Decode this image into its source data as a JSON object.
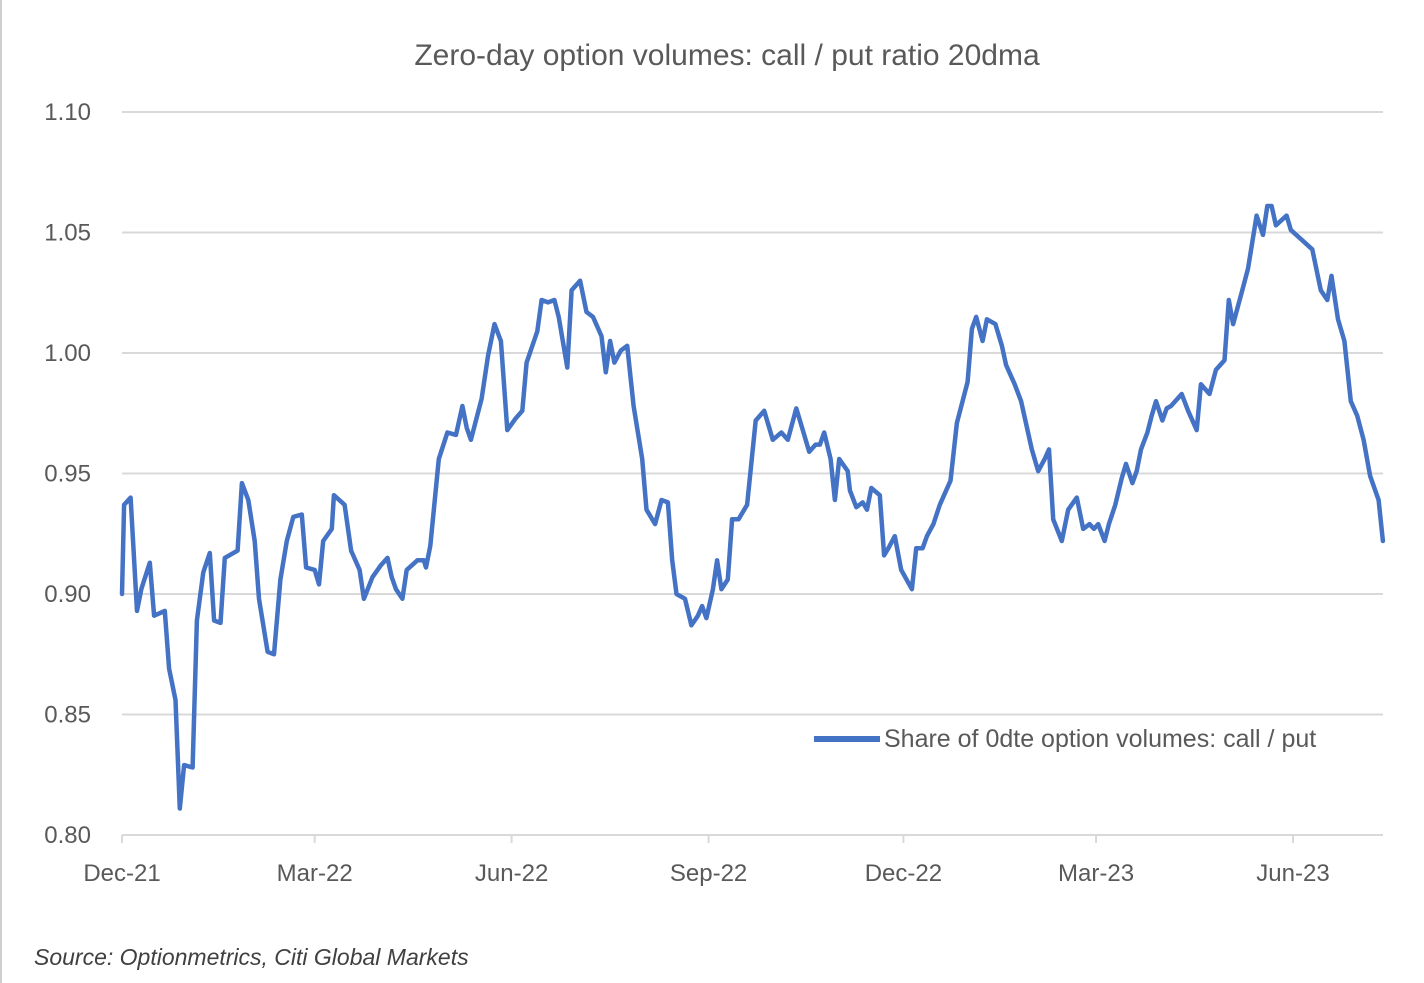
{
  "chart_data": {
    "type": "line",
    "title": "Zero-day option volumes: call / put ratio 20dma",
    "xlabel": "",
    "ylabel": "",
    "ylim": [
      0.8,
      1.1
    ],
    "xlim": [
      "2021-12-01",
      "2023-07-13"
    ],
    "yticks": [
      "0.80",
      "0.85",
      "0.90",
      "0.95",
      "1.00",
      "1.05",
      "1.10"
    ],
    "xticks": [
      {
        "label": "Dec-21",
        "date": "2021-12-01"
      },
      {
        "label": "Mar-22",
        "date": "2022-03-01"
      },
      {
        "label": "Jun-22",
        "date": "2022-06-01"
      },
      {
        "label": "Sep-22",
        "date": "2022-09-01"
      },
      {
        "label": "Dec-22",
        "date": "2022-12-01"
      },
      {
        "label": "Mar-23",
        "date": "2023-03-01"
      },
      {
        "label": "Jun-23",
        "date": "2023-06-01"
      }
    ],
    "grid": true,
    "legend_position": "bottom-right",
    "series": [
      {
        "name": "Share of 0dte option volumes: call / put",
        "color": "#4472C4",
        "x": [
          "2021-12-01",
          "2021-12-02",
          "2021-12-05",
          "2021-12-08",
          "2021-12-10",
          "2021-12-14",
          "2021-12-16",
          "2021-12-21",
          "2021-12-23",
          "2021-12-26",
          "2021-12-28",
          "2021-12-30",
          "2022-01-03",
          "2022-01-05",
          "2022-01-08",
          "2022-01-11",
          "2022-01-13",
          "2022-01-16",
          "2022-01-18",
          "2022-01-24",
          "2022-01-26",
          "2022-01-29",
          "2022-02-01",
          "2022-02-03",
          "2022-02-07",
          "2022-02-10",
          "2022-02-13",
          "2022-02-16",
          "2022-02-19",
          "2022-02-23",
          "2022-02-25",
          "2022-03-01",
          "2022-03-03",
          "2022-03-05",
          "2022-03-09",
          "2022-03-10",
          "2022-03-15",
          "2022-03-18",
          "2022-03-22",
          "2022-03-24",
          "2022-03-28",
          "2022-04-01",
          "2022-04-04",
          "2022-04-06",
          "2022-04-08",
          "2022-04-11",
          "2022-04-13",
          "2022-04-18",
          "2022-04-21",
          "2022-04-22",
          "2022-04-24",
          "2022-04-28",
          "2022-05-02",
          "2022-05-06",
          "2022-05-09",
          "2022-05-11",
          "2022-05-13",
          "2022-05-18",
          "2022-05-21",
          "2022-05-24",
          "2022-05-27",
          "2022-05-30",
          "2022-06-03",
          "2022-06-06",
          "2022-06-08",
          "2022-06-13",
          "2022-06-15",
          "2022-06-18",
          "2022-06-21",
          "2022-06-23",
          "2022-06-27",
          "2022-06-29",
          "2022-07-03",
          "2022-07-06",
          "2022-07-09",
          "2022-07-13",
          "2022-07-15",
          "2022-07-17",
          "2022-07-19",
          "2022-07-22",
          "2022-07-25",
          "2022-07-28",
          "2022-08-01",
          "2022-08-03",
          "2022-08-07",
          "2022-08-10",
          "2022-08-13",
          "2022-08-15",
          "2022-08-17",
          "2022-08-21",
          "2022-08-24",
          "2022-08-27",
          "2022-08-29",
          "2022-08-31",
          "2022-09-03",
          "2022-09-05",
          "2022-09-07",
          "2022-09-10",
          "2022-09-12",
          "2022-09-15",
          "2022-09-19",
          "2022-09-23",
          "2022-09-27",
          "2022-10-01",
          "2022-10-05",
          "2022-10-08",
          "2022-10-12",
          "2022-10-15",
          "2022-10-18",
          "2022-10-21",
          "2022-10-23",
          "2022-10-25",
          "2022-10-28",
          "2022-10-30",
          "2022-11-01",
          "2022-11-05",
          "2022-11-06",
          "2022-11-09",
          "2022-11-12",
          "2022-11-14",
          "2022-11-16",
          "2022-11-20",
          "2022-11-22",
          "2022-11-24",
          "2022-11-27",
          "2022-11-30",
          "2022-12-05",
          "2022-12-07",
          "2022-12-10",
          "2022-12-12",
          "2022-12-15",
          "2022-12-18",
          "2022-12-23",
          "2022-12-26",
          "2022-12-31",
          "2023-01-02",
          "2023-01-04",
          "2023-01-07",
          "2023-01-09",
          "2023-01-13",
          "2023-01-16",
          "2023-01-18",
          "2023-01-22",
          "2023-01-25",
          "2023-01-30",
          "2023-02-02",
          "2023-02-05",
          "2023-02-07",
          "2023-02-09",
          "2023-02-13",
          "2023-02-16",
          "2023-02-20",
          "2023-02-23",
          "2023-02-26",
          "2023-02-28",
          "2023-03-02",
          "2023-03-05",
          "2023-03-07",
          "2023-03-10",
          "2023-03-13",
          "2023-03-15",
          "2023-03-18",
          "2023-03-20",
          "2023-03-22",
          "2023-03-25",
          "2023-03-27",
          "2023-03-29",
          "2023-04-01",
          "2023-04-03",
          "2023-04-05",
          "2023-04-10",
          "2023-04-13",
          "2023-04-17",
          "2023-04-19",
          "2023-04-23",
          "2023-04-26",
          "2023-04-30",
          "2023-05-02",
          "2023-05-04",
          "2023-05-08",
          "2023-05-11",
          "2023-05-15",
          "2023-05-18",
          "2023-05-20",
          "2023-05-22",
          "2023-05-24",
          "2023-05-29",
          "2023-05-31",
          "2023-06-05",
          "2023-06-10",
          "2023-06-14",
          "2023-06-17",
          "2023-06-19",
          "2023-06-22",
          "2023-06-25",
          "2023-06-28",
          "2023-07-01",
          "2023-07-04",
          "2023-07-07",
          "2023-07-11",
          "2023-07-13"
        ],
        "y": [
          0.9,
          0.937,
          0.94,
          0.893,
          0.902,
          0.913,
          0.891,
          0.893,
          0.869,
          0.856,
          0.811,
          0.829,
          0.828,
          0.889,
          0.909,
          0.917,
          0.889,
          0.888,
          0.915,
          0.918,
          0.946,
          0.939,
          0.922,
          0.898,
          0.876,
          0.875,
          0.906,
          0.922,
          0.932,
          0.933,
          0.911,
          0.91,
          0.904,
          0.922,
          0.927,
          0.941,
          0.937,
          0.918,
          0.91,
          0.898,
          0.907,
          0.912,
          0.915,
          0.907,
          0.902,
          0.898,
          0.91,
          0.914,
          0.914,
          0.911,
          0.92,
          0.956,
          0.967,
          0.966,
          0.978,
          0.969,
          0.964,
          0.981,
          0.999,
          1.012,
          1.005,
          0.968,
          0.973,
          0.976,
          0.996,
          1.009,
          1.022,
          1.021,
          1.022,
          1.015,
          0.994,
          1.026,
          1.03,
          1.017,
          1.015,
          1.007,
          0.992,
          1.005,
          0.996,
          1.001,
          1.003,
          0.978,
          0.956,
          0.935,
          0.929,
          0.939,
          0.938,
          0.914,
          0.9,
          0.898,
          0.887,
          0.891,
          0.895,
          0.89,
          0.902,
          0.914,
          0.902,
          0.906,
          0.931,
          0.931,
          0.937,
          0.972,
          0.976,
          0.964,
          0.967,
          0.964,
          0.977,
          0.968,
          0.959,
          0.962,
          0.962,
          0.967,
          0.956,
          0.939,
          0.956,
          0.951,
          0.943,
          0.936,
          0.938,
          0.935,
          0.944,
          0.941,
          0.916,
          0.919,
          0.924,
          0.91,
          0.902,
          0.919,
          0.919,
          0.924,
          0.929,
          0.937,
          0.947,
          0.971,
          0.988,
          1.01,
          1.015,
          1.005,
          1.014,
          1.012,
          1.003,
          0.995,
          0.987,
          0.98,
          0.96,
          0.951,
          0.956,
          0.96,
          0.931,
          0.922,
          0.935,
          0.94,
          0.927,
          0.929,
          0.927,
          0.929,
          0.922,
          0.929,
          0.937,
          0.948,
          0.954,
          0.946,
          0.951,
          0.96,
          0.967,
          0.974,
          0.98,
          0.972,
          0.977,
          0.978,
          0.983,
          0.976,
          0.968,
          0.987,
          0.983,
          0.993,
          0.997,
          1.022,
          1.012,
          1.025,
          1.035,
          1.057,
          1.049,
          1.061,
          1.061,
          1.053,
          1.057,
          1.051,
          1.047,
          1.043,
          1.026,
          1.022,
          1.032,
          1.014,
          1.005,
          0.98,
          0.974,
          0.964,
          0.949,
          0.939,
          0.922
        ]
      }
    ]
  },
  "source": "Source: Optionmetrics, Citi Global Markets"
}
